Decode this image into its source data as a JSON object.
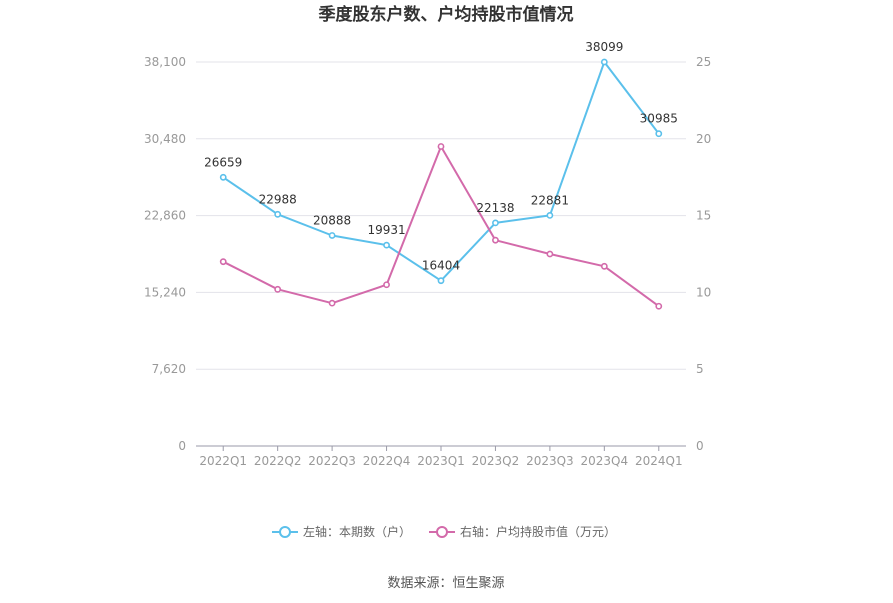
{
  "chart_data": {
    "type": "line",
    "title": "季度股东户数、户均持股市值情况",
    "categories": [
      "2022Q1",
      "2022Q2",
      "2022Q3",
      "2022Q4",
      "2023Q1",
      "2023Q2",
      "2023Q3",
      "2023Q4",
      "2024Q1"
    ],
    "left_axis": {
      "ticks": [
        "0",
        "7,620",
        "15,240",
        "22,860",
        "30,480",
        "38,100"
      ],
      "ylim": [
        0,
        38100
      ]
    },
    "right_axis": {
      "ticks": [
        "0",
        "5",
        "10",
        "15",
        "20",
        "25"
      ],
      "ylim": [
        0,
        25
      ]
    },
    "series": [
      {
        "name": "左轴：本期数（户）",
        "axis": "left",
        "color": "#5bc0eb",
        "values": [
          26659,
          22988,
          20888,
          19931,
          16404,
          22138,
          22881,
          38099,
          30985
        ],
        "labels": [
          "26659",
          "22988",
          "20888",
          "19931",
          "16404",
          "22138",
          "22881",
          "38099",
          "30985"
        ]
      },
      {
        "name": "右轴：户均持股市值（万元）",
        "axis": "right",
        "color": "#d36aaa",
        "values": [
          12.0,
          10.2,
          9.3,
          10.5,
          19.5,
          13.4,
          12.5,
          11.7,
          9.1
        ]
      }
    ],
    "grid": true,
    "legend_position": "bottom"
  },
  "source": "数据来源：恒生聚源"
}
